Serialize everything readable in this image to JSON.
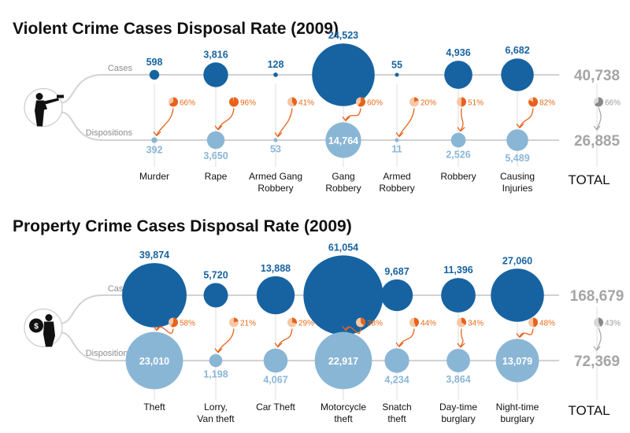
{
  "colors": {
    "cases": "#1763a1",
    "dispositions": "#8ab6d6",
    "arrow": "#e8621a",
    "rate_fill": "#e8621a",
    "rate_bg": "#f7c7a6",
    "total": "#a5a5a5",
    "line": "#d2d2d2"
  },
  "icons": {
    "violent": "gunman-icon",
    "property": "thief-with-money-bag-icon"
  },
  "chart_data": [
    {
      "type": "bubble",
      "title": "Violent Crime Cases Disposal Rate (2009)",
      "row_labels": {
        "cases": "Cases",
        "dispositions": "Dispositions"
      },
      "categories": [
        [
          "Murder"
        ],
        [
          "Rape"
        ],
        [
          "Armed Gang",
          "Robbery"
        ],
        [
          "Gang",
          "Robbery"
        ],
        [
          "Armed",
          "Robbery"
        ],
        [
          "Robbery"
        ],
        [
          "Causing",
          "Injuries"
        ]
      ],
      "series": [
        {
          "name": "Cases",
          "values": [
            598,
            3816,
            128,
            24523,
            55,
            4936,
            6682
          ],
          "labels": [
            "598",
            "3,816",
            "128",
            "24,523",
            "55",
            "4,936",
            "6,682"
          ]
        },
        {
          "name": "Dispositions",
          "values": [
            392,
            3650,
            53,
            14764,
            11,
            2526,
            5489
          ],
          "labels": [
            "392",
            "3,650",
            "53",
            "14,764",
            "11",
            "2,526",
            "5,489"
          ]
        }
      ],
      "disposal_rates": [
        66,
        96,
        41,
        60,
        20,
        51,
        82
      ],
      "rate_labels": [
        "66%",
        "96%",
        "41%",
        "60%",
        "20%",
        "51%",
        "82%"
      ],
      "total": {
        "label": "TOTAL",
        "cases": "40,738",
        "dispositions": "26,885",
        "rate": 66,
        "rate_label": "66%"
      }
    },
    {
      "type": "bubble",
      "title": "Property Crime Cases Disposal Rate (2009)",
      "row_labels": {
        "cases": "Cases",
        "dispositions": "Dispositions"
      },
      "categories": [
        [
          "Theft"
        ],
        [
          "Lorry,",
          "Van theft"
        ],
        [
          "Car Theft"
        ],
        [
          "Motorcycle",
          "theft"
        ],
        [
          "Snatch",
          "theft"
        ],
        [
          "Day-time",
          "burglary"
        ],
        [
          "Night-time",
          "burglary"
        ]
      ],
      "series": [
        {
          "name": "Cases",
          "values": [
            39874,
            5720,
            13888,
            61054,
            9687,
            11396,
            27060
          ],
          "labels": [
            "39,874",
            "5,720",
            "13,888",
            "61,054",
            "9,687",
            "11,396",
            "27,060"
          ]
        },
        {
          "name": "Dispositions",
          "values": [
            23010,
            1198,
            4067,
            22917,
            4234,
            3864,
            13079
          ],
          "labels": [
            "23,010",
            "1,198",
            "4,067",
            "22,917",
            "4,234",
            "3,864",
            "13,079"
          ]
        }
      ],
      "disposal_rates": [
        58,
        21,
        29,
        38,
        44,
        34,
        48
      ],
      "rate_labels": [
        "58%",
        "21%",
        "29%",
        "38%",
        "44%",
        "34%",
        "48%"
      ],
      "total": {
        "label": "TOTAL",
        "cases": "168,679",
        "dispositions": "72,369",
        "rate": 43,
        "rate_label": "43%"
      }
    }
  ]
}
